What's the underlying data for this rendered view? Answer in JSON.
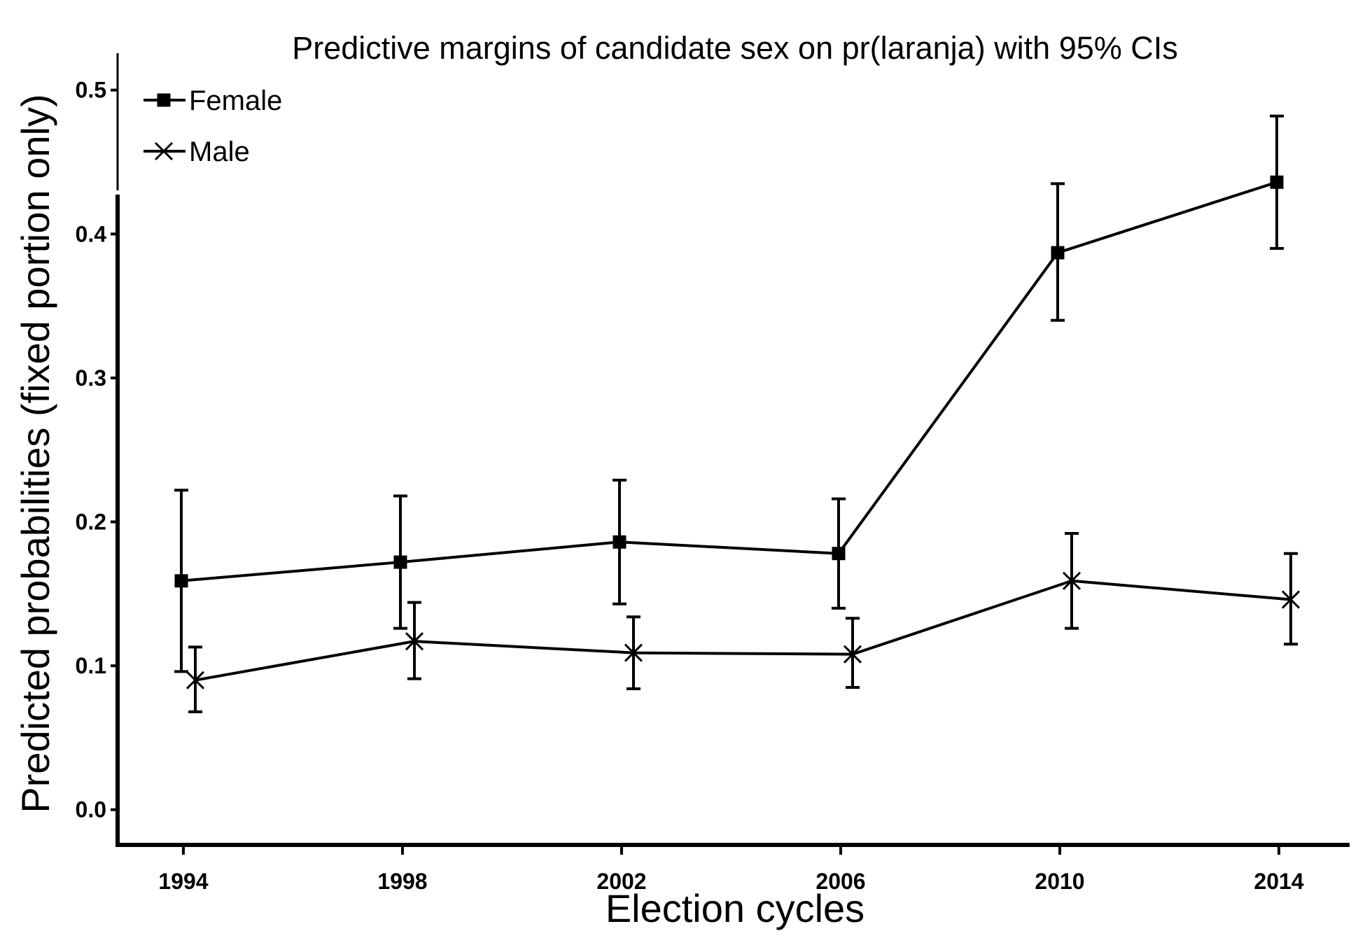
{
  "chart_data": {
    "type": "line",
    "title": "Predictive margins of candidate sex on pr(laranja) with 95% CIs",
    "xlabel": "Election cycles",
    "ylabel": "Predicted probabilities (fixed portion only)",
    "categories": [
      "1994",
      "1998",
      "2002",
      "2006",
      "2010",
      "2014"
    ],
    "yticks": [
      "0.0",
      "0.1",
      "0.2",
      "0.3",
      "0.4",
      "0.5"
    ],
    "ylim": [
      -0.025,
      0.525
    ],
    "grid": false,
    "legend_position": "top-left",
    "series": [
      {
        "name": "Female",
        "marker": "square",
        "values": [
          0.159,
          0.172,
          0.186,
          0.178,
          0.387,
          0.436
        ],
        "ci_low": [
          0.096,
          0.126,
          0.143,
          0.14,
          0.34,
          0.39
        ],
        "ci_high": [
          0.222,
          0.218,
          0.229,
          0.216,
          0.435,
          0.482
        ]
      },
      {
        "name": "Male",
        "marker": "x",
        "values": [
          0.09,
          0.117,
          0.109,
          0.108,
          0.159,
          0.146
        ],
        "ci_low": [
          0.068,
          0.091,
          0.084,
          0.085,
          0.126,
          0.115
        ],
        "ci_high": [
          0.113,
          0.144,
          0.134,
          0.133,
          0.192,
          0.178
        ]
      }
    ],
    "colors": {
      "line": "#000000",
      "background": "#ffffff"
    }
  }
}
